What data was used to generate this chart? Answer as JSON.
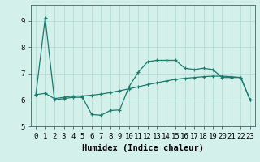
{
  "xlabel": "Humidex (Indice chaleur)",
  "ylabel": "",
  "bg_color": "#d4f0eb",
  "line_color": "#1a7a6e",
  "grid_color": "#aed8d0",
  "xlim": [
    -0.5,
    23.5
  ],
  "ylim": [
    5.0,
    9.6
  ],
  "yticks": [
    5,
    6,
    7,
    8,
    9
  ],
  "xticks": [
    0,
    1,
    2,
    3,
    4,
    5,
    6,
    7,
    8,
    9,
    10,
    11,
    12,
    13,
    14,
    15,
    16,
    17,
    18,
    19,
    20,
    21,
    22,
    23
  ],
  "series1_x": [
    0,
    1,
    2,
    3,
    4,
    5,
    6,
    7,
    8,
    9,
    10,
    11,
    12,
    13,
    14,
    15,
    16,
    17,
    18,
    19,
    20,
    21,
    22,
    23
  ],
  "series1_y": [
    6.2,
    9.1,
    6.0,
    6.05,
    6.1,
    6.1,
    5.45,
    5.42,
    5.6,
    5.62,
    6.5,
    7.05,
    7.45,
    7.5,
    7.5,
    7.5,
    7.2,
    7.15,
    7.2,
    7.15,
    6.85,
    6.85,
    6.85,
    6.0
  ],
  "series2_x": [
    0,
    1,
    2,
    3,
    4,
    5,
    6,
    7,
    8,
    9,
    10,
    11,
    12,
    13,
    14,
    15,
    16,
    17,
    18,
    19,
    20,
    21,
    22,
    23
  ],
  "series2_y": [
    6.2,
    6.25,
    6.05,
    6.1,
    6.15,
    6.15,
    6.18,
    6.22,
    6.28,
    6.35,
    6.42,
    6.5,
    6.58,
    6.65,
    6.72,
    6.78,
    6.82,
    6.85,
    6.88,
    6.9,
    6.9,
    6.88,
    6.85,
    6.0
  ],
  "tick_fontsize": 6.5,
  "xlabel_fontsize": 7.5
}
